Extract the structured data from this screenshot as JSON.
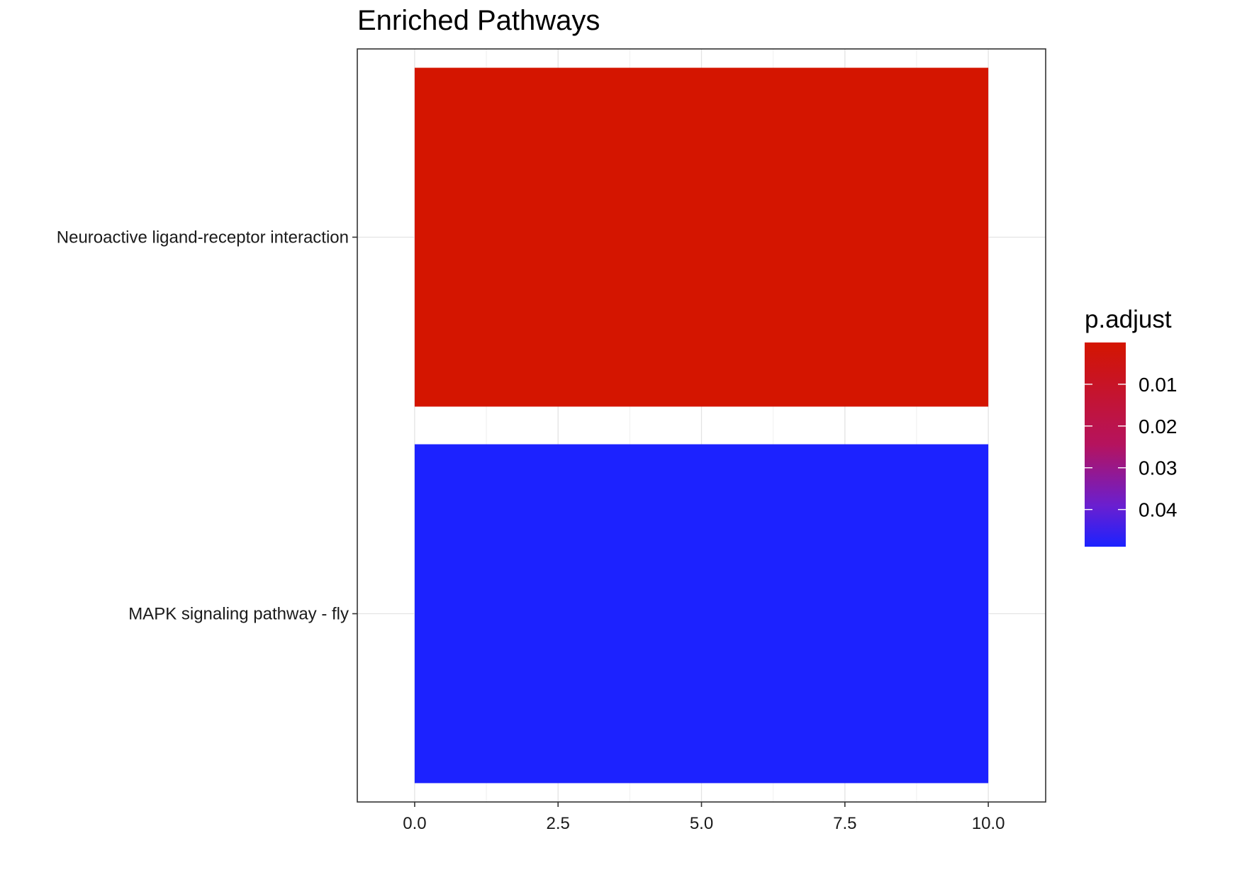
{
  "chart_data": {
    "type": "bar",
    "orientation": "horizontal",
    "title": "Enriched Pathways",
    "xlabel": "",
    "ylabel": "",
    "categories": [
      "Neuroactive ligand-receptor interaction",
      "MAPK signaling pathway - fly"
    ],
    "values": [
      10,
      10
    ],
    "p_adjust": [
      0.0,
      0.05
    ],
    "bar_colors": [
      "#d41500",
      "#1c22ff"
    ],
    "xlim": [
      -1,
      11
    ],
    "x_ticks": [
      0,
      2.5,
      5,
      7.5,
      10
    ],
    "x_tick_labels": [
      "0.0",
      "2.5",
      "5.0",
      "7.5",
      "10.0"
    ],
    "grid": true,
    "legend": {
      "title": "p.adjust",
      "placement": "right",
      "type": "colorbar",
      "range": [
        0.0,
        0.0489
      ],
      "low_color": "#d41500",
      "high_color": "#1c22ff",
      "ticks": [
        0.01,
        0.02,
        0.03,
        0.04
      ],
      "tick_labels": [
        "0.01",
        "0.02",
        "0.03",
        "0.04"
      ]
    }
  }
}
